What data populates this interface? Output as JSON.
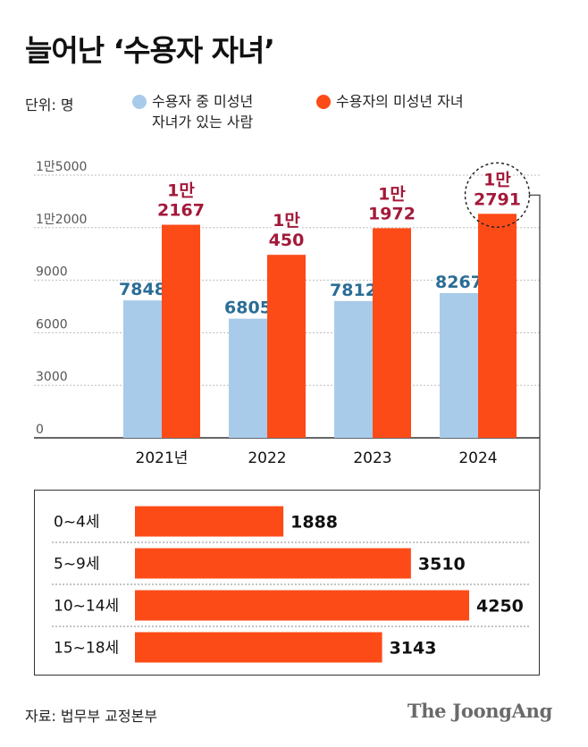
{
  "title": "늘어난 ‘수용자 자녀’",
  "unit": "단위: 명",
  "legend": [
    {
      "lines": [
        "수용자 중 미성년",
        "자녀가 있는 사람"
      ],
      "color": "#a8cbea"
    },
    {
      "lines": [
        "수용자의 미성년 자녀"
      ],
      "color": "#fd4b18"
    }
  ],
  "chart_data": [
    {
      "type": "bar",
      "categories": [
        "2021년",
        "2022",
        "2023",
        "2024"
      ],
      "series": [
        {
          "name": "수용자 중 미성년 자녀가 있는 사람",
          "values": [
            7848,
            6805,
            7812,
            8267
          ],
          "labels": [
            [
              "7848"
            ],
            [
              "6805"
            ],
            [
              "7812"
            ],
            [
              "8267"
            ]
          ]
        },
        {
          "name": "수용자의 미성년 자녀",
          "values": [
            12167,
            10450,
            11972,
            12791
          ],
          "labels": [
            [
              "1만",
              "2167"
            ],
            [
              "1만",
              "450"
            ],
            [
              "1만",
              "1972"
            ],
            [
              "1만",
              "2791"
            ]
          ]
        }
      ],
      "y_ticks": [
        "0",
        "3000",
        "6000",
        "9000",
        "1만2000",
        "1만5000"
      ],
      "y_tick_values": [
        0,
        3000,
        6000,
        9000,
        12000,
        15000
      ],
      "ylim": [
        0,
        15000
      ],
      "grid": true,
      "highlight_category": "2024"
    },
    {
      "type": "bar",
      "orientation": "horizontal",
      "categories": [
        "0~4세",
        "5~9세",
        "10~14세",
        "15~18세"
      ],
      "values": [
        1888,
        3510,
        4250,
        3143
      ],
      "xlim": [
        0,
        4250
      ],
      "color": "#fd4b18"
    }
  ],
  "source": "자료: 법무부 교정본부",
  "brand": "The JoongAng"
}
